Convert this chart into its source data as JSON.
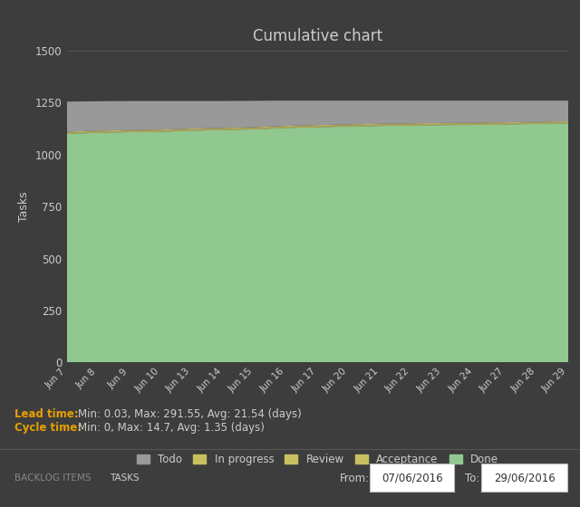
{
  "title": "Cumulative chart",
  "background_color": "#3d3d3d",
  "plot_bg_color": "#3d3d3d",
  "text_color": "#cccccc",
  "ylabel": "Tasks",
  "ylim": [
    0,
    1500
  ],
  "yticks": [
    0,
    250,
    500,
    750,
    1000,
    1250,
    1500
  ],
  "dates": [
    "Jun 7",
    "Jun 8",
    "Jun 9",
    "Jun 10",
    "Jun 13",
    "Jun 14",
    "Jun 15",
    "Jun 16",
    "Jun 17",
    "Jun 20",
    "Jun 21",
    "Jun 22",
    "Jun 23",
    "Jun 24",
    "Jun 27",
    "Jun 28",
    "Jun 29"
  ],
  "done_values": [
    1100,
    1105,
    1108,
    1110,
    1115,
    1118,
    1122,
    1128,
    1132,
    1135,
    1138,
    1140,
    1142,
    1143,
    1145,
    1148,
    1150
  ],
  "acceptance_values": [
    3,
    3,
    3,
    3,
    3,
    3,
    3,
    3,
    3,
    3,
    3,
    3,
    3,
    3,
    3,
    3,
    3
  ],
  "review_values": [
    3,
    3,
    3,
    3,
    3,
    3,
    3,
    3,
    3,
    3,
    3,
    3,
    3,
    3,
    3,
    3,
    3
  ],
  "inprogress_values": [
    4,
    4,
    4,
    4,
    4,
    4,
    4,
    4,
    4,
    4,
    4,
    4,
    4,
    4,
    4,
    4,
    4
  ],
  "todo_values": [
    145,
    142,
    140,
    138,
    133,
    130,
    127,
    122,
    118,
    115,
    112,
    110,
    108,
    107,
    105,
    102,
    100
  ],
  "colors": {
    "done": "#90c890",
    "acceptance": "#c8c060",
    "review": "#c8c060",
    "inprogress": "#c8c060",
    "todo": "#999999"
  },
  "legend_labels": [
    "Todo",
    "In progress",
    "Review",
    "Acceptance",
    "Done"
  ],
  "legend_colors": [
    "#999999",
    "#c8c060",
    "#c8c060",
    "#c8c060",
    "#90c890"
  ],
  "lead_time_label": "Lead time:",
  "lead_time_value": "Min: 0.03, Max: 291.55, Avg: 21.54 (days)",
  "cycle_time_label": "Cycle time:",
  "cycle_time_value": "Min: 0, Max: 14.7, Avg: 1.35 (days)",
  "highlight_color": "#e8a000",
  "from_label": "From:",
  "to_label": "To:",
  "from_date": "07/06/2016",
  "to_date": "29/06/2016",
  "backlog_label": "BACKLOG ITEMS",
  "tasks_label": "TASKS",
  "grid_color": "#555555",
  "separator_color": "#555555",
  "date_box_color": "#ffffff",
  "date_text_color": "#333333",
  "tasks_box_color": "#555555"
}
